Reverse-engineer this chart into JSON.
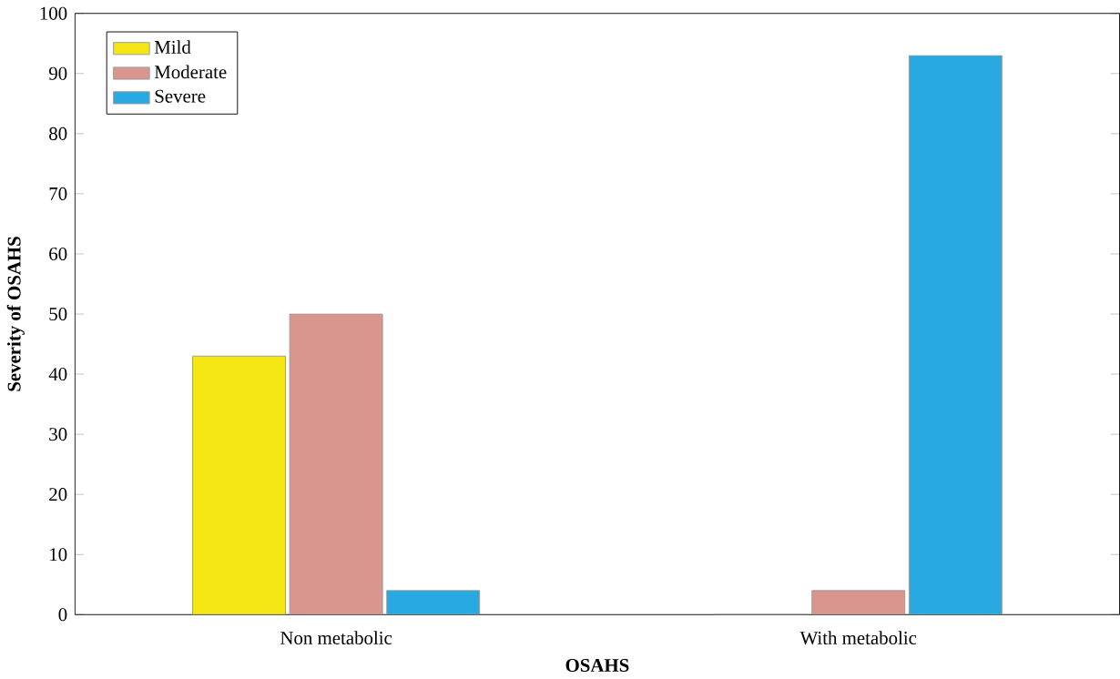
{
  "chart_data": {
    "type": "bar",
    "xlabel": "OSAHS",
    "ylabel": "Severity of OSAHS",
    "categories": [
      "Non metabolic",
      "With metabolic"
    ],
    "series": [
      {
        "name": "Mild",
        "color": "#f3e612",
        "values": [
          43,
          0
        ]
      },
      {
        "name": "Moderate",
        "color": "#d9968f",
        "values": [
          50,
          4
        ]
      },
      {
        "name": "Severe",
        "color": "#29a9e1",
        "values": [
          4,
          93
        ]
      }
    ],
    "ylim": [
      0,
      100
    ],
    "yticks": [
      0,
      10,
      20,
      30,
      40,
      50,
      60,
      70,
      80,
      90,
      100
    ],
    "legend": "top left",
    "grid": false
  }
}
